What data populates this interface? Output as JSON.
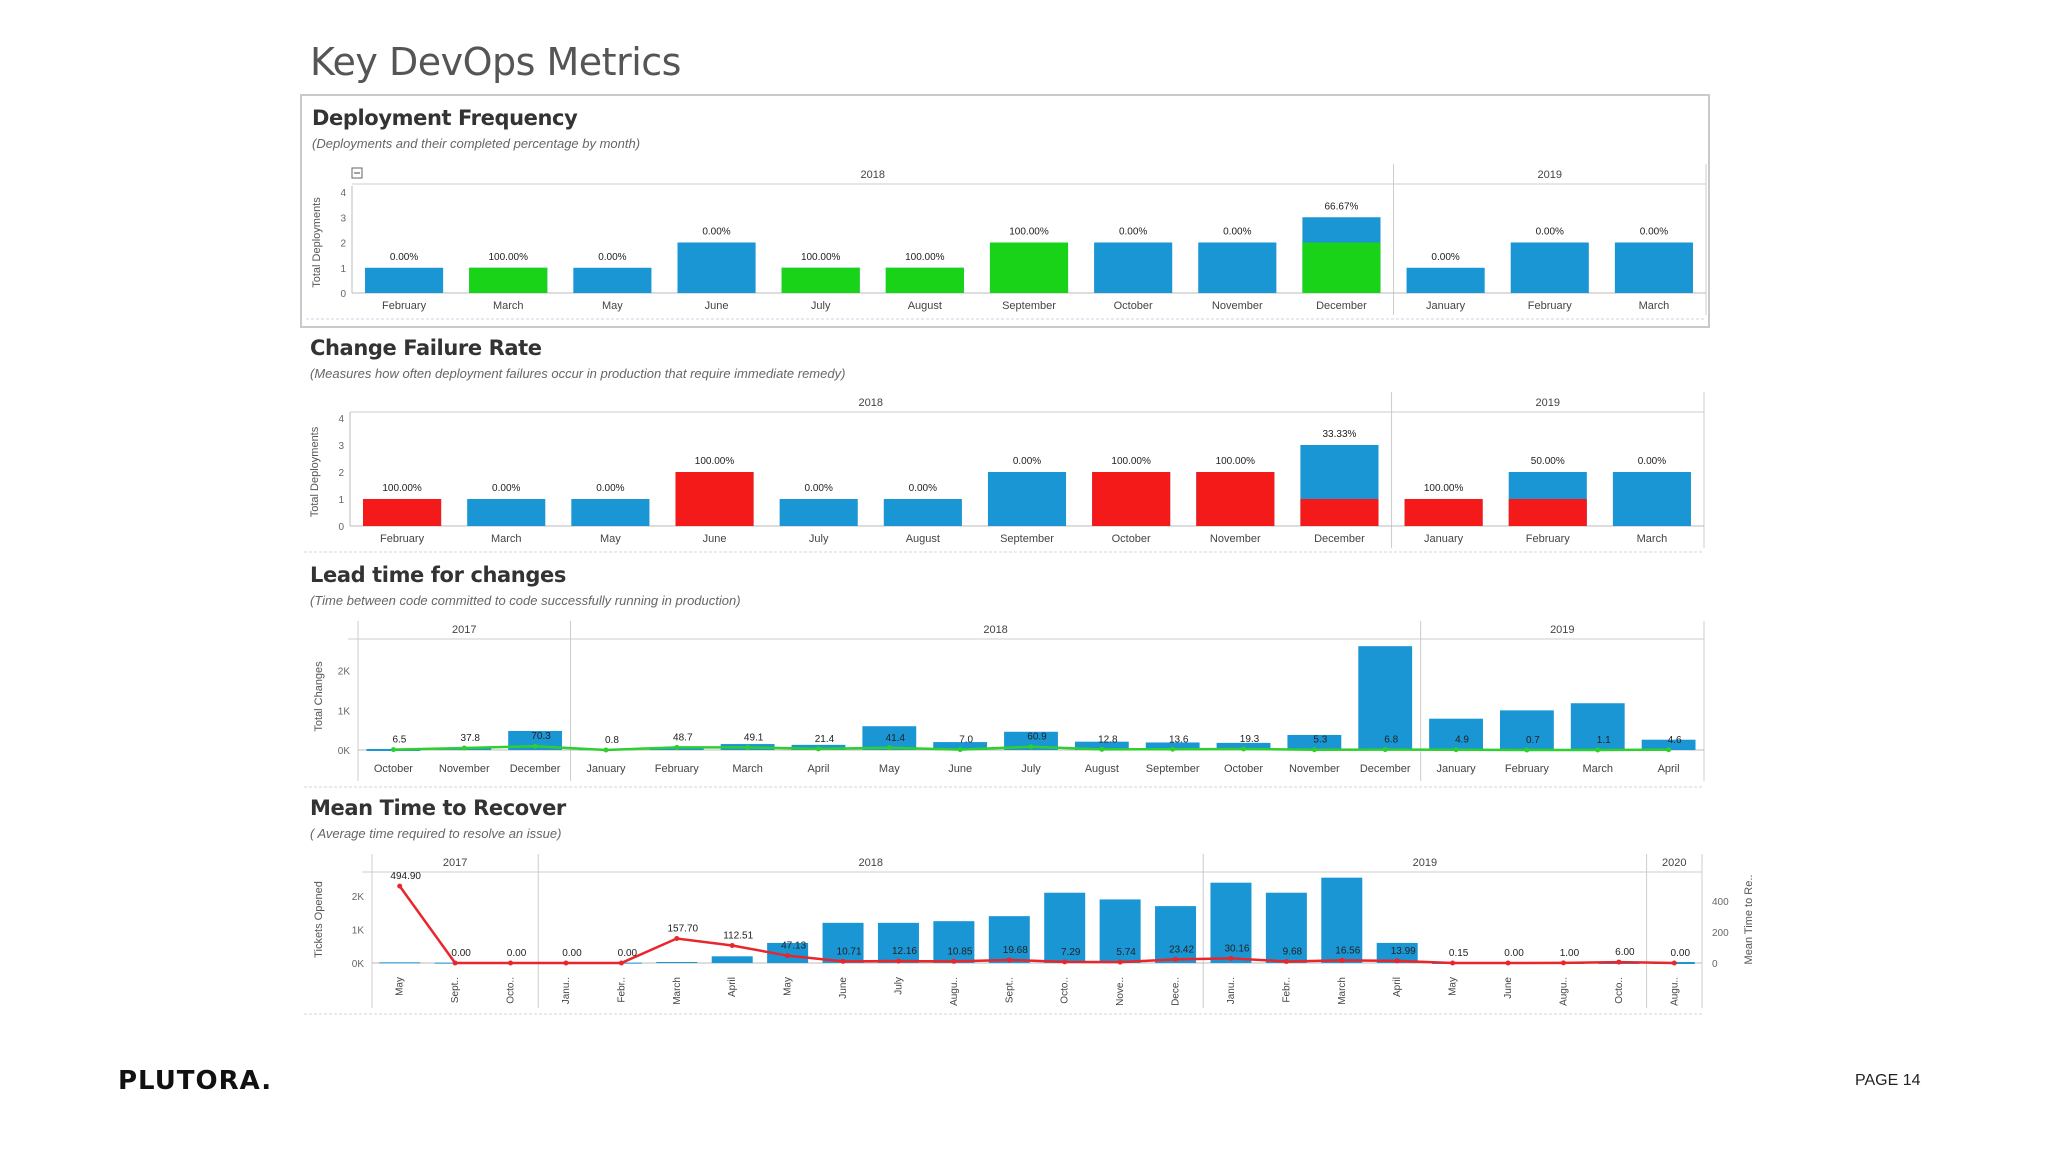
{
  "page_title": "Key DevOps Metrics",
  "footer": {
    "logo": "PLUTORA.",
    "page": "PAGE 14"
  },
  "colors": {
    "blue": "#1a96d4",
    "green": "#19d319",
    "red": "#f51a1a",
    "line_green": "#2fcf2f",
    "line_red": "#e8262b"
  },
  "chart_data": [
    {
      "id": "deployment_frequency",
      "type": "bar",
      "title": "Deployment Frequency",
      "subtitle": "(Deployments and their completed percentage by month)",
      "ylabel": "Total Deployments",
      "yticks": [
        0,
        1,
        2,
        3,
        4
      ],
      "ylim": [
        0,
        4
      ],
      "groups": [
        {
          "label": "2018",
          "count": 10
        },
        {
          "label": "2019",
          "count": 3
        }
      ],
      "categories": [
        "February",
        "March",
        "May",
        "June",
        "July",
        "August",
        "September",
        "October",
        "November",
        "December",
        "January",
        "February",
        "March"
      ],
      "series": [
        {
          "name": "Total",
          "values": [
            1,
            1,
            1,
            2,
            1,
            1,
            2,
            2,
            2,
            3,
            1,
            2,
            2
          ]
        },
        {
          "name": "Completed",
          "values": [
            0,
            1,
            0,
            0,
            1,
            1,
            2,
            0,
            0,
            2,
            0,
            0,
            0
          ]
        }
      ],
      "labels": [
        "0.00%",
        "100.00%",
        "0.00%",
        "0.00%",
        "100.00%",
        "100.00%",
        "100.00%",
        "0.00%",
        "0.00%",
        "66.67%",
        "0.00%",
        "0.00%",
        "0.00%"
      ],
      "overlay_color": "green"
    },
    {
      "id": "change_failure_rate",
      "type": "bar",
      "title": "Change Failure Rate",
      "subtitle": "(Measures how often deployment failures occur in production that require immediate remedy)",
      "ylabel": "Total Deployments",
      "yticks": [
        0,
        1,
        2,
        3,
        4
      ],
      "ylim": [
        0,
        4
      ],
      "groups": [
        {
          "label": "2018",
          "count": 10
        },
        {
          "label": "2019",
          "count": 3
        }
      ],
      "categories": [
        "February",
        "March",
        "May",
        "June",
        "July",
        "August",
        "September",
        "October",
        "November",
        "December",
        "January",
        "February",
        "March"
      ],
      "series": [
        {
          "name": "Total",
          "values": [
            1,
            1,
            1,
            2,
            1,
            1,
            2,
            2,
            2,
            3,
            1,
            2,
            2
          ]
        },
        {
          "name": "Failed",
          "values": [
            1,
            0,
            0,
            2,
            0,
            0,
            0,
            2,
            2,
            1,
            1,
            1,
            0
          ]
        }
      ],
      "labels": [
        "100.00%",
        "0.00%",
        "0.00%",
        "100.00%",
        "0.00%",
        "0.00%",
        "0.00%",
        "100.00%",
        "100.00%",
        "33.33%",
        "100.00%",
        "50.00%",
        "0.00%"
      ],
      "overlay_color": "red"
    },
    {
      "id": "lead_time",
      "type": "bar+line",
      "title": "Lead time for changes",
      "subtitle": "(Time between code committed to code successfully running in production)",
      "ylabel": "Total Changes",
      "yticks": [
        "0K",
        "1K",
        "2K"
      ],
      "ylim": [
        0,
        2700
      ],
      "groups": [
        {
          "label": "2017",
          "count": 3
        },
        {
          "label": "2018",
          "count": 12
        },
        {
          "label": "2019",
          "count": 4
        }
      ],
      "categories": [
        "October",
        "November",
        "December",
        "January",
        "February",
        "March",
        "April",
        "May",
        "June",
        "July",
        "August",
        "September",
        "October",
        "November",
        "December",
        "January",
        "February",
        "March",
        "April"
      ],
      "bars": [
        0,
        50,
        480,
        20,
        60,
        150,
        130,
        600,
        200,
        460,
        210,
        190,
        180,
        380,
        2620,
        790,
        1000,
        1180,
        260
      ],
      "line": [
        6.5,
        37.8,
        70.3,
        0.8,
        48.7,
        49.1,
        21.4,
        41.4,
        7.0,
        60.9,
        12.8,
        13.6,
        19.3,
        5.3,
        6.8,
        4.9,
        0.7,
        1.1,
        4.6
      ],
      "line_labels": [
        "6.5",
        "37.8",
        "70.3",
        "0.8",
        "48.7",
        "49.1",
        "21.4",
        "41.4",
        "7.0",
        "60.9",
        "12.8",
        "13.6",
        "19.3",
        "5.3",
        "6.8",
        "4.9",
        "0.7",
        "1.1",
        "4.6"
      ]
    },
    {
      "id": "mttr",
      "type": "bar+line",
      "title": "Mean Time to Recover",
      "subtitle": "( Average time required to resolve an issue)",
      "ylabel": "Tickets Opened",
      "y2label": "Mean Time to Re..",
      "yticks": [
        "0K",
        "1K",
        "2K"
      ],
      "y2ticks": [
        "0",
        "200",
        "400"
      ],
      "ylim": [
        0,
        2600
      ],
      "y2lim": [
        0,
        560
      ],
      "groups": [
        {
          "label": "2017",
          "count": 3
        },
        {
          "label": "2018",
          "count": 12
        },
        {
          "label": "2019",
          "count": 8
        },
        {
          "label": "2020",
          "count": 1
        }
      ],
      "categories": [
        "May",
        "Sept..",
        "Octo..",
        "Janu..",
        "Febr..",
        "March",
        "April",
        "May",
        "June",
        "July",
        "Augu..",
        "Sept..",
        "Octo..",
        "Nove..",
        "Dece..",
        "Janu..",
        "Febr..",
        "March",
        "April",
        "May",
        "June",
        "Augu..",
        "Octo..",
        "Augu.."
      ],
      "bars": [
        20,
        10,
        10,
        10,
        10,
        30,
        200,
        600,
        1200,
        1200,
        1250,
        1400,
        2100,
        1900,
        1700,
        2400,
        2100,
        2550,
        600,
        0,
        0,
        0,
        0,
        0
      ],
      "line": [
        494.9,
        0.0,
        0.0,
        0.0,
        0.0,
        157.7,
        112.51,
        47.13,
        10.71,
        12.16,
        10.85,
        19.68,
        7.29,
        5.74,
        23.42,
        30.16,
        9.68,
        16.56,
        13.99,
        0.15,
        0.0,
        1.0,
        6.0,
        0.0
      ],
      "line_labels": [
        "494.90",
        "0.00",
        "0.00",
        "0.00",
        "0.00",
        "157.70",
        "112.51",
        "47.13",
        "10.71",
        "12.16",
        "10.85",
        "19.68",
        "7.29",
        "5.74",
        "23.42",
        "30.16",
        "9.68",
        "16.56",
        "13.99",
        "0.15",
        "0.00",
        "1.00",
        "6.00",
        "0.00"
      ]
    }
  ]
}
